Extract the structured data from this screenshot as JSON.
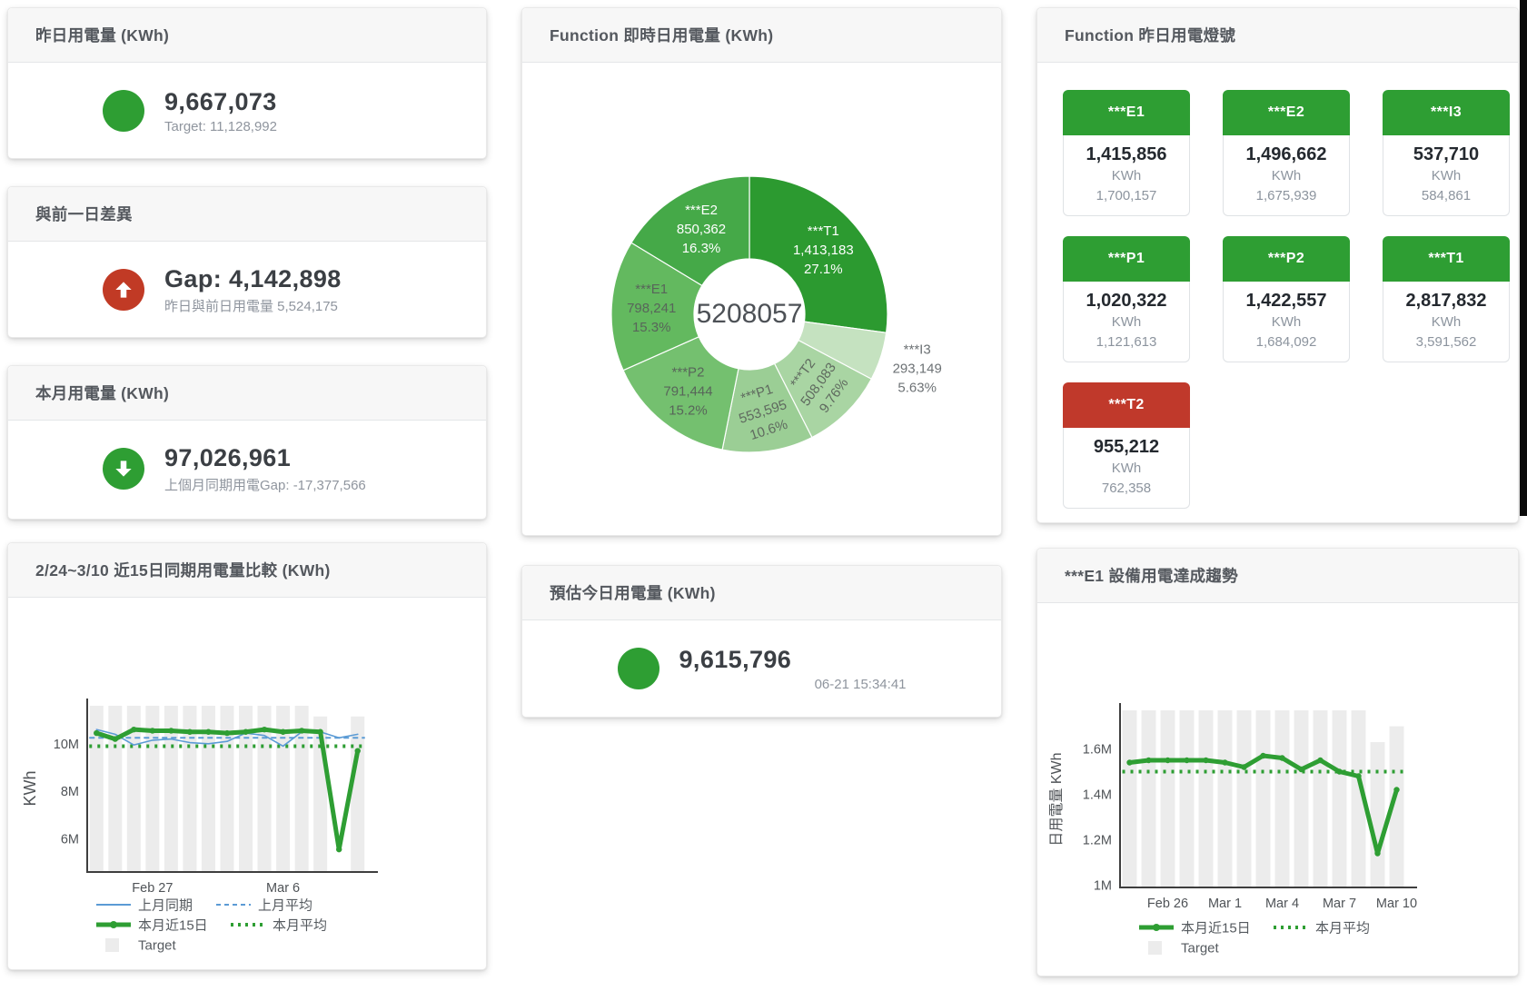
{
  "colors": {
    "green": "#2e9e33",
    "red": "#c13a25",
    "tile_red": "#c0392b",
    "blue": "#5b9bd5",
    "bar_gray": "#ececec"
  },
  "cards": {
    "yesterday": {
      "title": "昨日用電量 (KWh)",
      "value": "9,667,073",
      "subtitle": "Target: 11,128,992"
    },
    "day_gap": {
      "title": "與前一日差異",
      "value": "Gap: 4,142,898",
      "subtitle": "昨日與前日用電量 5,524,175"
    },
    "month": {
      "title": "本月用電量 (KWh)",
      "value": "97,026,961",
      "subtitle": "上個月同期用電Gap: -17,377,566"
    },
    "compare": {
      "title": "2/24~3/10 近15日同期用電量比較 (KWh)"
    },
    "realtime": {
      "title": "Function 即時日用電量 (KWh)"
    },
    "estimate": {
      "title": "預估今日用電量 (KWh)",
      "value": "9,615,796",
      "subtitle": "06-21 15:34:41"
    },
    "lights": {
      "title": "Function 昨日用電燈號"
    },
    "e1_trend": {
      "title": "***E1 設備用電達成趨勢"
    }
  },
  "tiles": [
    {
      "label": "***E1",
      "value": "1,415,856",
      "unit": "KWh",
      "target": "1,700,157",
      "status": "green"
    },
    {
      "label": "***E2",
      "value": "1,496,662",
      "unit": "KWh",
      "target": "1,675,939",
      "status": "green"
    },
    {
      "label": "***I3",
      "value": "537,710",
      "unit": "KWh",
      "target": "584,861",
      "status": "green"
    },
    {
      "label": "***P1",
      "value": "1,020,322",
      "unit": "KWh",
      "target": "1,121,613",
      "status": "green"
    },
    {
      "label": "***P2",
      "value": "1,422,557",
      "unit": "KWh",
      "target": "1,684,092",
      "status": "green"
    },
    {
      "label": "***T1",
      "value": "2,817,832",
      "unit": "KWh",
      "target": "3,591,562",
      "status": "green"
    },
    {
      "label": "***T2",
      "value": "955,212",
      "unit": "KWh",
      "target": "762,358",
      "status": "red"
    }
  ],
  "chart_data": [
    {
      "type": "pie",
      "name": "function-realtime-donut",
      "title": "Function 即時日用電量 (KWh)",
      "center_total": "5208057",
      "slices": [
        {
          "name": "***T1",
          "value": 1413183,
          "pct": "27.1%",
          "color": "#2c9a30",
          "label_color": "#ffffff"
        },
        {
          "name": "***I3",
          "value": 293149,
          "pct": "5.63%",
          "color": "#c5e2c0",
          "label_color": "#6d7275",
          "outside": true
        },
        {
          "name": "***T2",
          "value": 508083,
          "pct": "9.76%",
          "color": "#a9d5a3",
          "label_color": "#5f6a5f",
          "rotate": -54
        },
        {
          "name": "***P1",
          "value": 553595,
          "pct": "10.6%",
          "color": "#9bce95",
          "label_color": "#5f6a5f",
          "rotate": -18
        },
        {
          "name": "***P2",
          "value": 791444,
          "pct": "15.2%",
          "color": "#74c06f",
          "label_color": "#58655a"
        },
        {
          "name": "***E1",
          "value": 798241,
          "pct": "15.3%",
          "color": "#63b95f",
          "label_color": "#58655a"
        },
        {
          "name": "***E2",
          "value": 850362,
          "pct": "16.3%",
          "color": "#45a948",
          "label_color": "#ffffff"
        }
      ]
    },
    {
      "type": "line",
      "name": "compare-15day",
      "title": "2/24~3/10 近15日同期用電量比較 (KWh)",
      "ylabel": "KWh",
      "ylim": [
        4.6,
        11.6
      ],
      "yticks": [
        {
          "v": 6,
          "label": "6M"
        },
        {
          "v": 8,
          "label": "8M"
        },
        {
          "v": 10,
          "label": "10M"
        }
      ],
      "xticks": [
        {
          "i": 3,
          "label": "Feb 27"
        },
        {
          "i": 10,
          "label": "Mar 6"
        }
      ],
      "series": [
        {
          "name": "Target",
          "style": "bar",
          "color": "#ececec",
          "values": [
            11.6,
            11.6,
            11.6,
            11.6,
            11.6,
            11.6,
            11.6,
            11.6,
            11.6,
            11.6,
            11.6,
            11.6,
            11.15,
            0,
            11.15
          ]
        },
        {
          "name": "上月平均",
          "style": "dashed",
          "color": "#5b9bd5",
          "constant": 10.25
        },
        {
          "name": "本月平均",
          "style": "dotted",
          "color": "#2e9e33",
          "constant": 9.9
        },
        {
          "name": "上月同期",
          "style": "line",
          "color": "#5b9bd5",
          "values": [
            10.6,
            10.4,
            9.95,
            10.15,
            10.2,
            10.05,
            10.0,
            10.1,
            10.45,
            10.35,
            9.9,
            10.5,
            10.5,
            10.25,
            10.4
          ]
        },
        {
          "name": "本月近15日",
          "style": "thick",
          "color": "#2e9e33",
          "values": [
            10.45,
            10.2,
            10.6,
            10.55,
            10.55,
            10.5,
            10.5,
            10.45,
            10.5,
            10.6,
            10.5,
            10.55,
            10.5,
            5.55,
            9.7
          ]
        }
      ],
      "legend_rows": [
        [
          "上月同期",
          "上月平均"
        ],
        [
          "本月近15日",
          "本月平均"
        ],
        [
          "Target"
        ]
      ]
    },
    {
      "type": "line",
      "name": "e1-trend",
      "title": "***E1 設備用電達成趨勢",
      "ylabel": "日用電量 KWh",
      "ylim": [
        0.99,
        1.77
      ],
      "yticks": [
        {
          "v": 1,
          "label": "1M"
        },
        {
          "v": 1.2,
          "label": "1.2M"
        },
        {
          "v": 1.4,
          "label": "1.4M"
        },
        {
          "v": 1.6,
          "label": "1.6M"
        }
      ],
      "xticks": [
        {
          "i": 2,
          "label": "Feb 26"
        },
        {
          "i": 5,
          "label": "Mar 1"
        },
        {
          "i": 8,
          "label": "Mar 4"
        },
        {
          "i": 11,
          "label": "Mar 7"
        },
        {
          "i": 14,
          "label": "Mar 10"
        }
      ],
      "series": [
        {
          "name": "Target",
          "style": "bar",
          "color": "#ececec",
          "values": [
            1.77,
            1.77,
            1.77,
            1.77,
            1.77,
            1.77,
            1.77,
            1.77,
            1.77,
            1.77,
            1.77,
            1.77,
            1.77,
            1.63,
            1.7
          ]
        },
        {
          "name": "本月平均",
          "style": "dotted",
          "color": "#2e9e33",
          "constant": 1.5
        },
        {
          "name": "本月近15日",
          "style": "thick",
          "color": "#2e9e33",
          "values": [
            1.54,
            1.55,
            1.55,
            1.55,
            1.55,
            1.54,
            1.52,
            1.57,
            1.56,
            1.51,
            1.55,
            1.5,
            1.48,
            1.14,
            1.42
          ]
        }
      ],
      "legend_rows": [
        [
          "本月近15日",
          "本月平均"
        ],
        [
          "Target"
        ]
      ]
    }
  ]
}
